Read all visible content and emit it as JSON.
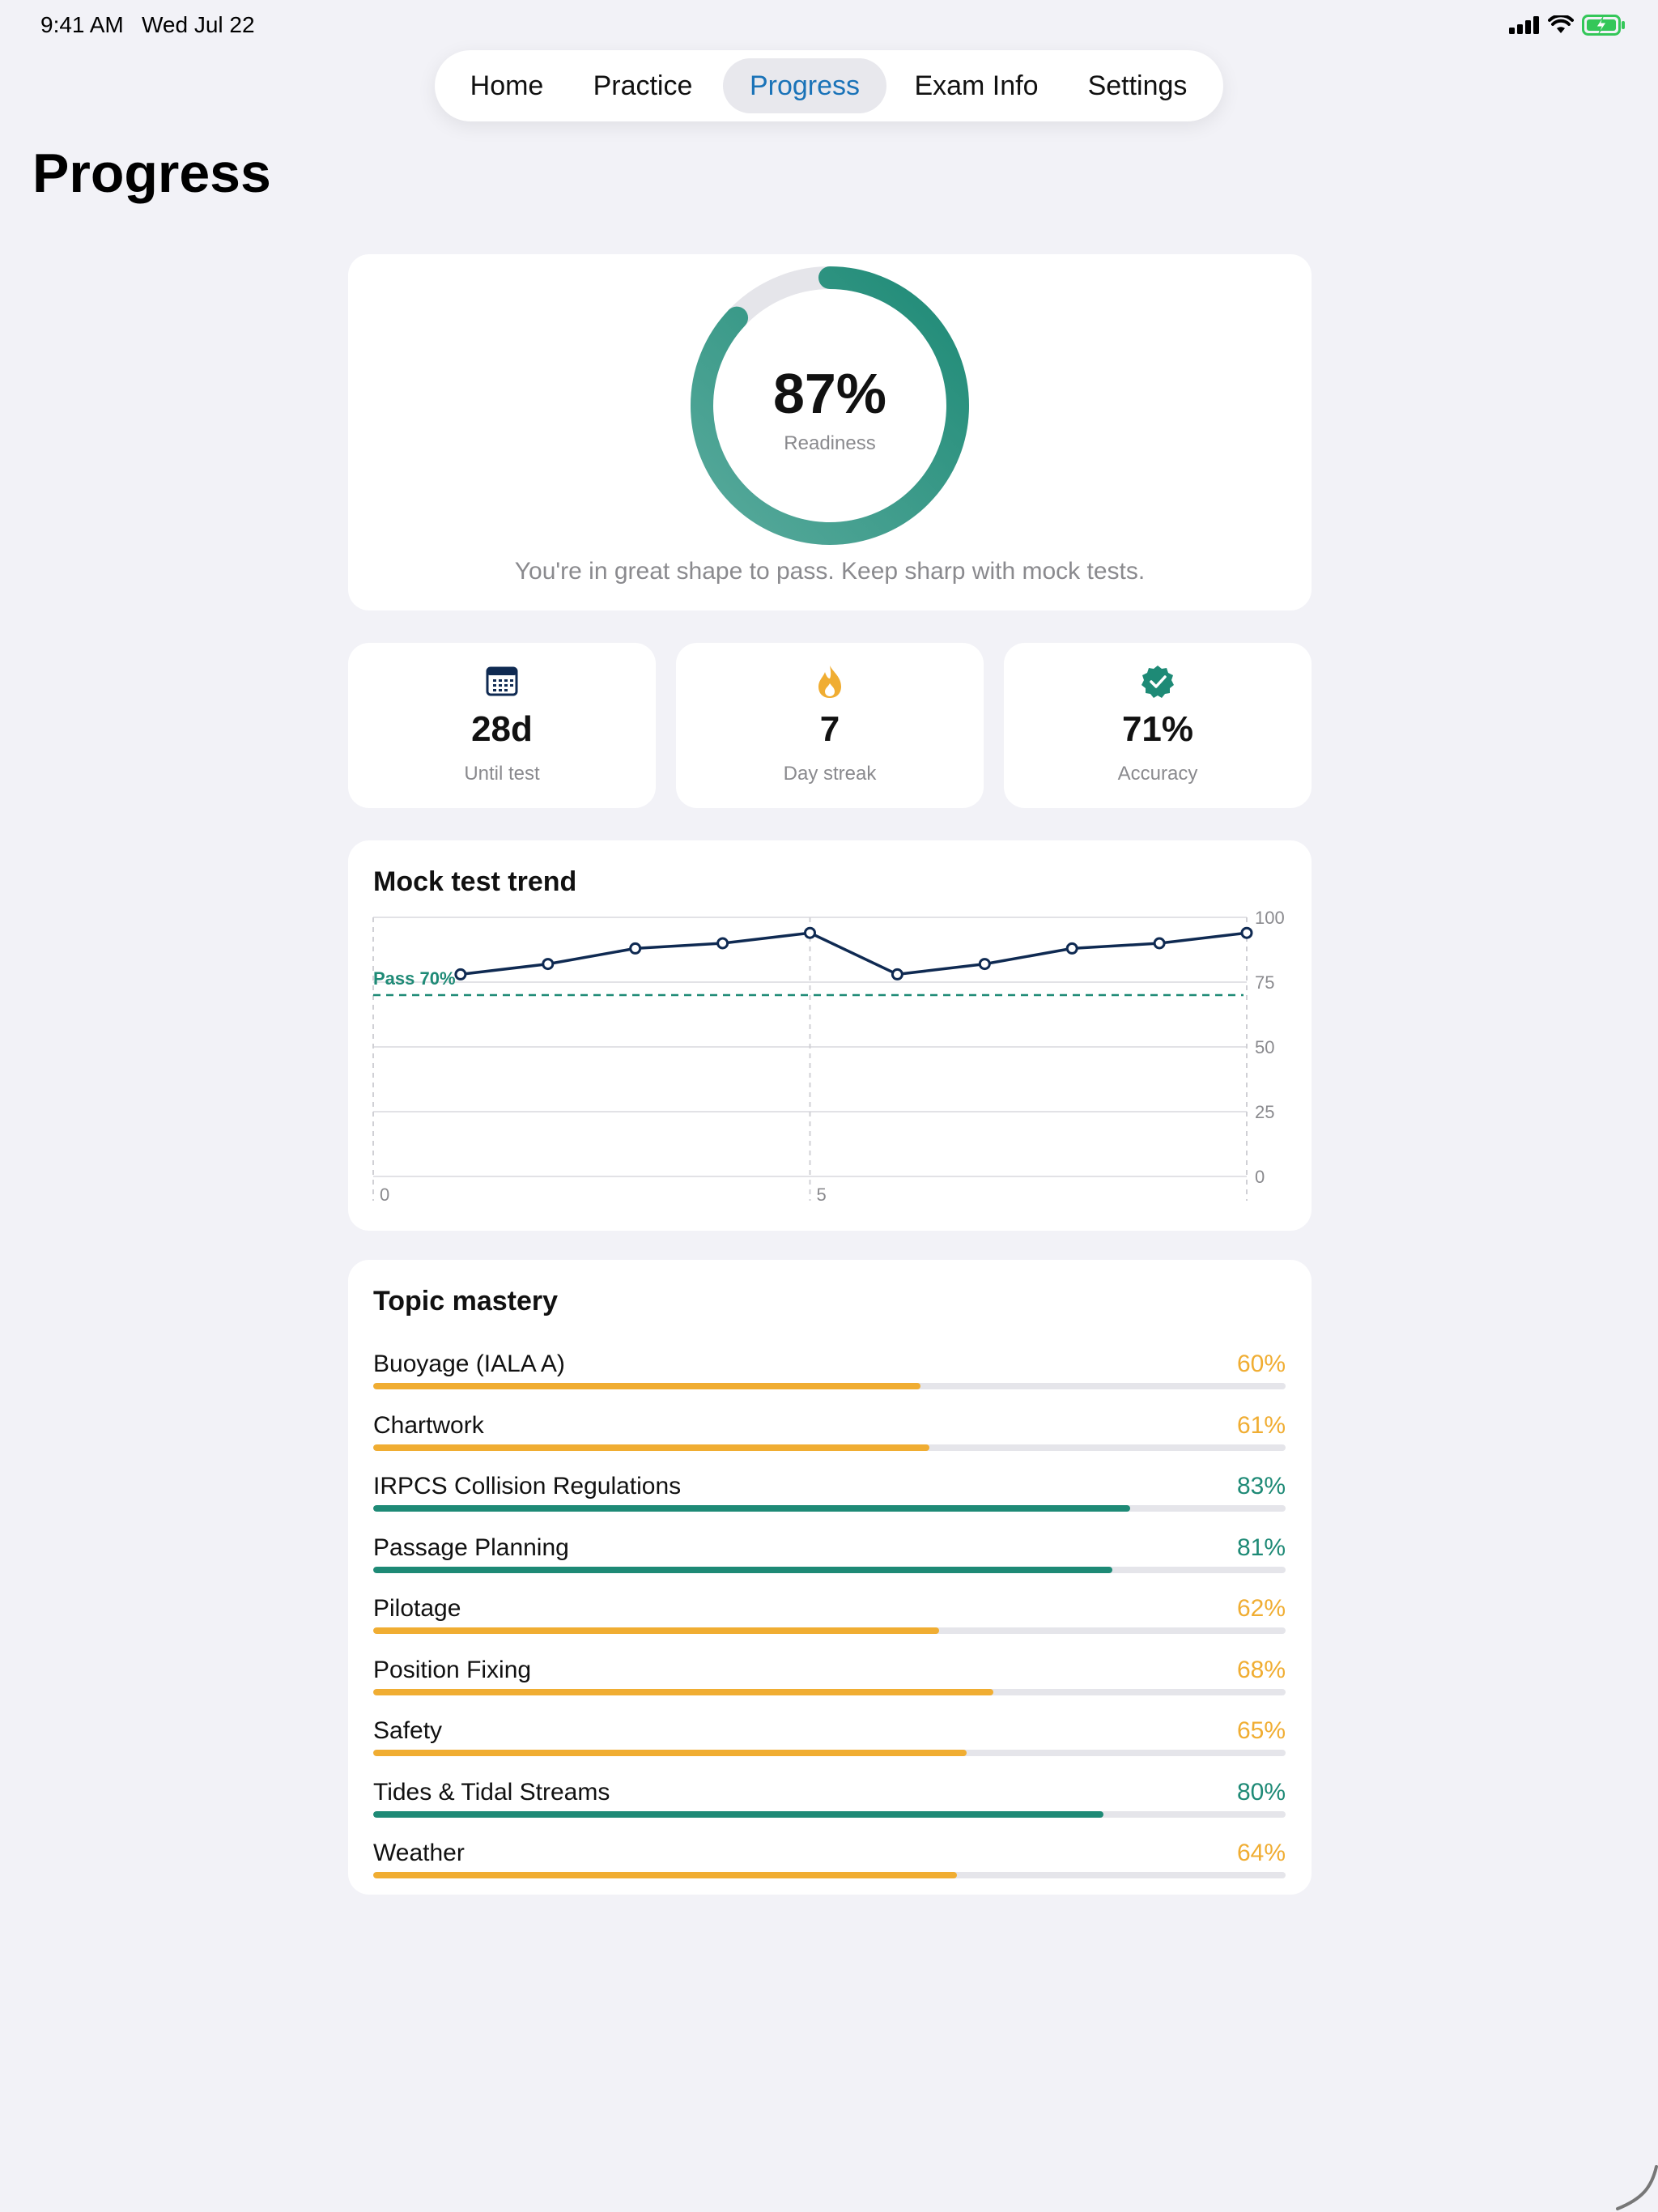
{
  "status_bar": {
    "time": "9:41 AM",
    "date": "Wed Jul 22"
  },
  "tabs": [
    {
      "label": "Home",
      "active": false
    },
    {
      "label": "Practice",
      "active": false
    },
    {
      "label": "Progress",
      "active": true
    },
    {
      "label": "Exam Info",
      "active": false
    },
    {
      "label": "Settings",
      "active": false
    }
  ],
  "page_title": "Progress",
  "readiness": {
    "value": "87%",
    "fraction": 0.87,
    "label": "Readiness",
    "message": "You're in great shape to pass. Keep sharp with mock tests."
  },
  "stats": [
    {
      "icon": "calendar-icon",
      "value": "28d",
      "label": "Until test"
    },
    {
      "icon": "flame-icon",
      "value": "7",
      "label": "Day streak"
    },
    {
      "icon": "verified-badge-icon",
      "value": "71%",
      "label": "Accuracy"
    }
  ],
  "trend": {
    "title": "Mock test trend",
    "pass_label": "Pass 70%",
    "pass_value": 70,
    "y_ticks": [
      "100",
      "75",
      "50",
      "25",
      "0"
    ],
    "x_ticks": [
      "0",
      "5"
    ]
  },
  "chart_data": {
    "type": "line",
    "title": "Mock test trend",
    "x": [
      1,
      2,
      3,
      4,
      5,
      6,
      7,
      8,
      9,
      10
    ],
    "series": [
      {
        "values": [
          78,
          82,
          88,
          90,
          94,
          78,
          82,
          88,
          90,
          94
        ]
      }
    ],
    "xlim": [
      0,
      10
    ],
    "ylim": [
      0,
      100
    ],
    "reference_line": {
      "y": 70,
      "label": "Pass 70%"
    },
    "grid": true,
    "y_axis_side": "right"
  },
  "mastery": {
    "title": "Topic mastery",
    "topics": [
      {
        "name": "Buoyage (IALA A)",
        "pct": "60%",
        "value": 0.6
      },
      {
        "name": "Chartwork",
        "pct": "61%",
        "value": 0.61
      },
      {
        "name": "IRPCS Collision Regulations",
        "pct": "83%",
        "value": 0.83
      },
      {
        "name": "Passage Planning",
        "pct": "81%",
        "value": 0.81
      },
      {
        "name": "Pilotage",
        "pct": "62%",
        "value": 0.62
      },
      {
        "name": "Position Fixing",
        "pct": "68%",
        "value": 0.68
      },
      {
        "name": "Safety",
        "pct": "65%",
        "value": 0.65
      },
      {
        "name": "Tides & Tidal Streams",
        "pct": "80%",
        "value": 0.8
      },
      {
        "name": "Weather",
        "pct": "64%",
        "value": 0.64
      }
    ]
  },
  "colors": {
    "accent_blue": "#1a73b8",
    "teal": "#1e8a76",
    "amber": "#f0ad32",
    "navy": "#0f2a52",
    "track": "#e5e5ea"
  }
}
